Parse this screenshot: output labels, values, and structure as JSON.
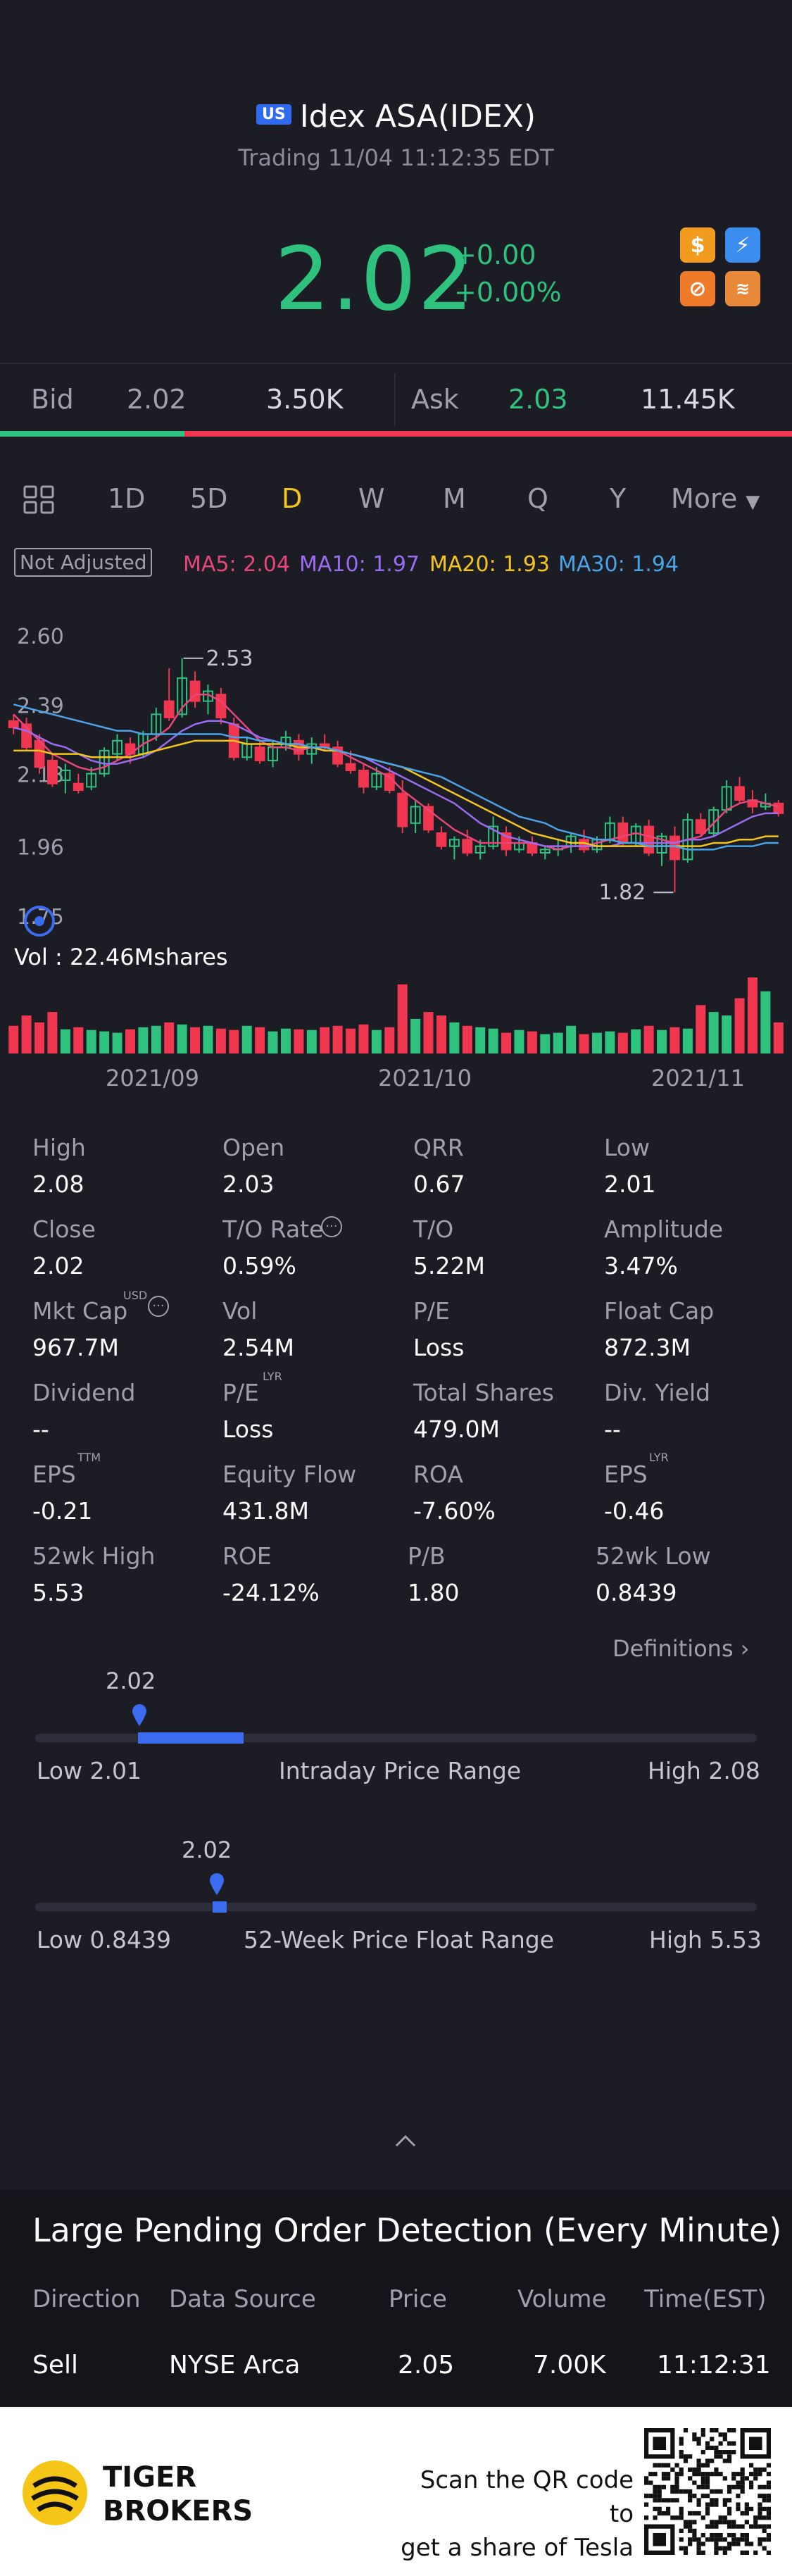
{
  "header": {
    "market_badge": "US",
    "title": "Idex ASA(IDEX)",
    "status": "Trading 11/04 11:12:35 EDT",
    "price": "2.02",
    "change": "+0.00",
    "change_pct": "+0.00%",
    "icons": [
      "dollar-icon",
      "lightning-icon",
      "no-short-icon",
      "stack-a-icon"
    ]
  },
  "quote": {
    "bid_label": "Bid",
    "bid_price": "2.02",
    "bid_size": "3.50K",
    "ask_label": "Ask",
    "ask_price": "2.03",
    "ask_size": "11.45K"
  },
  "tabs": [
    "1D",
    "5D",
    "D",
    "W",
    "M",
    "Q",
    "Y",
    "More"
  ],
  "active_tab": "D",
  "ma": {
    "not_adjusted": "Not Adjusted",
    "ma5": "MA5: 2.04",
    "ma10": "MA10: 1.97",
    "ma20": "MA20: 1.93",
    "ma30": "MA30: 1.94",
    "colors": {
      "ma5": "#e8457a",
      "ma10": "#9b6bf2",
      "ma20": "#f5c518",
      "ma30": "#4aa3e8"
    }
  },
  "chart_data": {
    "type": "candlestick",
    "y_ticks": [
      "2.60",
      "2.39",
      "2.18",
      "1.96",
      "1.75"
    ],
    "ylim": [
      1.75,
      2.6
    ],
    "high_marker": "2.53",
    "low_marker": "1.82",
    "x_ticks": [
      "2021/09",
      "2021/10",
      "2021/11"
    ],
    "volume_label": "Vol  : 22.46Mshares",
    "colors": {
      "up": "#2ec27e",
      "down": "#f0374f"
    },
    "candles": [
      {
        "o": 2.34,
        "h": 2.36,
        "l": 2.3,
        "c": 2.32
      },
      {
        "o": 2.33,
        "h": 2.35,
        "l": 2.25,
        "c": 2.26
      },
      {
        "o": 2.28,
        "h": 2.3,
        "l": 2.18,
        "c": 2.2
      },
      {
        "o": 2.22,
        "h": 2.24,
        "l": 2.14,
        "c": 2.15
      },
      {
        "o": 2.16,
        "h": 2.21,
        "l": 2.12,
        "c": 2.19
      },
      {
        "o": 2.15,
        "h": 2.18,
        "l": 2.12,
        "c": 2.13
      },
      {
        "o": 2.14,
        "h": 2.2,
        "l": 2.13,
        "c": 2.18
      },
      {
        "o": 2.18,
        "h": 2.26,
        "l": 2.17,
        "c": 2.25
      },
      {
        "o": 2.24,
        "h": 2.3,
        "l": 2.22,
        "c": 2.28
      },
      {
        "o": 2.27,
        "h": 2.29,
        "l": 2.21,
        "c": 2.24
      },
      {
        "o": 2.24,
        "h": 2.31,
        "l": 2.23,
        "c": 2.3
      },
      {
        "o": 2.3,
        "h": 2.38,
        "l": 2.28,
        "c": 2.36
      },
      {
        "o": 2.4,
        "h": 2.5,
        "l": 2.34,
        "c": 2.35
      },
      {
        "o": 2.36,
        "h": 2.53,
        "l": 2.35,
        "c": 2.47
      },
      {
        "o": 2.46,
        "h": 2.49,
        "l": 2.38,
        "c": 2.4
      },
      {
        "o": 2.4,
        "h": 2.45,
        "l": 2.36,
        "c": 2.43
      },
      {
        "o": 2.42,
        "h": 2.44,
        "l": 2.33,
        "c": 2.35
      },
      {
        "o": 2.33,
        "h": 2.35,
        "l": 2.22,
        "c": 2.23
      },
      {
        "o": 2.23,
        "h": 2.29,
        "l": 2.22,
        "c": 2.27
      },
      {
        "o": 2.26,
        "h": 2.28,
        "l": 2.21,
        "c": 2.22
      },
      {
        "o": 2.22,
        "h": 2.28,
        "l": 2.2,
        "c": 2.26
      },
      {
        "o": 2.26,
        "h": 2.31,
        "l": 2.25,
        "c": 2.29
      },
      {
        "o": 2.28,
        "h": 2.3,
        "l": 2.22,
        "c": 2.24
      },
      {
        "o": 2.24,
        "h": 2.29,
        "l": 2.21,
        "c": 2.27
      },
      {
        "o": 2.27,
        "h": 2.3,
        "l": 2.25,
        "c": 2.26
      },
      {
        "o": 2.26,
        "h": 2.28,
        "l": 2.2,
        "c": 2.21
      },
      {
        "o": 2.21,
        "h": 2.25,
        "l": 2.18,
        "c": 2.19
      },
      {
        "o": 2.19,
        "h": 2.21,
        "l": 2.12,
        "c": 2.14
      },
      {
        "o": 2.14,
        "h": 2.2,
        "l": 2.13,
        "c": 2.18
      },
      {
        "o": 2.18,
        "h": 2.2,
        "l": 2.12,
        "c": 2.13
      },
      {
        "o": 2.12,
        "h": 2.16,
        "l": 2.0,
        "c": 2.02
      },
      {
        "o": 2.03,
        "h": 2.1,
        "l": 2.0,
        "c": 2.08
      },
      {
        "o": 2.08,
        "h": 2.09,
        "l": 2.0,
        "c": 2.01
      },
      {
        "o": 2.0,
        "h": 2.02,
        "l": 1.95,
        "c": 1.96
      },
      {
        "o": 1.96,
        "h": 1.99,
        "l": 1.92,
        "c": 1.98
      },
      {
        "o": 1.98,
        "h": 2.01,
        "l": 1.93,
        "c": 1.94
      },
      {
        "o": 1.94,
        "h": 1.98,
        "l": 1.92,
        "c": 1.96
      },
      {
        "o": 1.96,
        "h": 2.05,
        "l": 1.95,
        "c": 2.02
      },
      {
        "o": 2.0,
        "h": 2.02,
        "l": 1.93,
        "c": 1.95
      },
      {
        "o": 1.95,
        "h": 1.99,
        "l": 1.94,
        "c": 1.97
      },
      {
        "o": 1.97,
        "h": 1.99,
        "l": 1.93,
        "c": 1.94
      },
      {
        "o": 1.94,
        "h": 1.96,
        "l": 1.92,
        "c": 1.95
      },
      {
        "o": 1.95,
        "h": 1.98,
        "l": 1.93,
        "c": 1.96
      },
      {
        "o": 1.96,
        "h": 2.0,
        "l": 1.94,
        "c": 1.99
      },
      {
        "o": 1.98,
        "h": 2.01,
        "l": 1.94,
        "c": 1.95
      },
      {
        "o": 1.95,
        "h": 1.99,
        "l": 1.94,
        "c": 1.98
      },
      {
        "o": 1.98,
        "h": 2.05,
        "l": 1.97,
        "c": 2.03
      },
      {
        "o": 2.03,
        "h": 2.05,
        "l": 1.96,
        "c": 1.97
      },
      {
        "o": 1.97,
        "h": 2.03,
        "l": 1.96,
        "c": 2.02
      },
      {
        "o": 2.02,
        "h": 2.04,
        "l": 1.93,
        "c": 1.94
      },
      {
        "o": 1.94,
        "h": 2.0,
        "l": 1.9,
        "c": 1.99
      },
      {
        "o": 1.99,
        "h": 2.02,
        "l": 1.82,
        "c": 1.92
      },
      {
        "o": 1.92,
        "h": 2.06,
        "l": 1.91,
        "c": 2.04
      },
      {
        "o": 2.04,
        "h": 2.06,
        "l": 1.99,
        "c": 2.0
      },
      {
        "o": 2.0,
        "h": 2.08,
        "l": 1.99,
        "c": 2.07
      },
      {
        "o": 2.07,
        "h": 2.16,
        "l": 2.06,
        "c": 2.14
      },
      {
        "o": 2.14,
        "h": 2.17,
        "l": 2.09,
        "c": 2.1
      },
      {
        "o": 2.1,
        "h": 2.13,
        "l": 2.06,
        "c": 2.08
      },
      {
        "o": 2.08,
        "h": 2.12,
        "l": 2.07,
        "c": 2.09
      },
      {
        "o": 2.09,
        "h": 2.1,
        "l": 2.05,
        "c": 2.06
      }
    ],
    "ma_lines": {
      "ma5": [
        2.36,
        2.32,
        2.28,
        2.24,
        2.22,
        2.2,
        2.19,
        2.2,
        2.22,
        2.24,
        2.27,
        2.29,
        2.32,
        2.38,
        2.42,
        2.42,
        2.4,
        2.36,
        2.32,
        2.28,
        2.26,
        2.26,
        2.25,
        2.26,
        2.26,
        2.25,
        2.23,
        2.21,
        2.19,
        2.17,
        2.13,
        2.1,
        2.07,
        2.04,
        2.01,
        1.99,
        1.97,
        1.97,
        1.97,
        1.97,
        1.97,
        1.96,
        1.95,
        1.96,
        1.96,
        1.97,
        1.98,
        1.99,
        2.0,
        1.99,
        1.98,
        1.97,
        1.98,
        1.99,
        2.03,
        2.07,
        2.09,
        2.1,
        2.09,
        2.08
      ],
      "ma10": [
        2.32,
        2.31,
        2.29,
        2.27,
        2.26,
        2.24,
        2.22,
        2.21,
        2.21,
        2.22,
        2.23,
        2.25,
        2.28,
        2.31,
        2.33,
        2.34,
        2.34,
        2.33,
        2.31,
        2.29,
        2.28,
        2.27,
        2.26,
        2.26,
        2.25,
        2.25,
        2.24,
        2.23,
        2.21,
        2.19,
        2.17,
        2.15,
        2.13,
        2.11,
        2.09,
        2.06,
        2.03,
        2.01,
        1.99,
        1.98,
        1.97,
        1.96,
        1.96,
        1.96,
        1.96,
        1.96,
        1.96,
        1.97,
        1.97,
        1.97,
        1.97,
        1.97,
        1.98,
        1.98,
        1.99,
        2.01,
        2.03,
        2.05,
        2.06,
        2.06
      ],
      "ma20": [
        2.25,
        2.25,
        2.25,
        2.24,
        2.24,
        2.24,
        2.23,
        2.23,
        2.23,
        2.23,
        2.24,
        2.25,
        2.26,
        2.27,
        2.28,
        2.28,
        2.28,
        2.28,
        2.27,
        2.27,
        2.27,
        2.27,
        2.26,
        2.26,
        2.25,
        2.25,
        2.24,
        2.23,
        2.22,
        2.21,
        2.2,
        2.18,
        2.16,
        2.14,
        2.12,
        2.1,
        2.08,
        2.06,
        2.04,
        2.02,
        2.0,
        1.99,
        1.98,
        1.97,
        1.97,
        1.96,
        1.96,
        1.96,
        1.96,
        1.96,
        1.96,
        1.96,
        1.96,
        1.96,
        1.97,
        1.97,
        1.98,
        1.98,
        1.99,
        1.99
      ],
      "ma30": [
        2.39,
        2.38,
        2.37,
        2.36,
        2.35,
        2.34,
        2.33,
        2.32,
        2.31,
        2.31,
        2.3,
        2.3,
        2.3,
        2.3,
        2.3,
        2.3,
        2.3,
        2.29,
        2.29,
        2.28,
        2.28,
        2.27,
        2.27,
        2.26,
        2.26,
        2.25,
        2.24,
        2.23,
        2.22,
        2.21,
        2.2,
        2.19,
        2.18,
        2.17,
        2.15,
        2.13,
        2.11,
        2.09,
        2.07,
        2.05,
        2.04,
        2.03,
        2.01,
        2.0,
        1.99,
        1.98,
        1.98,
        1.97,
        1.97,
        1.96,
        1.96,
        1.96,
        1.95,
        1.95,
        1.95,
        1.96,
        1.96,
        1.96,
        1.97,
        1.97
      ]
    },
    "volumes": [
      40,
      55,
      45,
      60,
      35,
      38,
      34,
      32,
      30,
      35,
      38,
      40,
      45,
      42,
      38,
      40,
      36,
      34,
      40,
      38,
      32,
      36,
      35,
      34,
      38,
      40,
      36,
      42,
      34,
      38,
      100,
      50,
      60,
      55,
      45,
      40,
      38,
      36,
      30,
      34,
      32,
      28,
      30,
      40,
      28,
      30,
      32,
      30,
      35,
      40,
      34,
      38,
      36,
      70,
      60,
      55,
      80,
      110,
      90,
      45
    ]
  },
  "stats": [
    {
      "label": "High",
      "value": "2.08"
    },
    {
      "label": "Open",
      "value": "2.03"
    },
    {
      "label": "QRR",
      "value": "0.67"
    },
    {
      "label": "Low",
      "value": "2.01"
    },
    {
      "label": "Close",
      "value": "2.02"
    },
    {
      "label": "T/O Rate",
      "value": "0.59%"
    },
    {
      "label": "T/O",
      "value": "5.22M"
    },
    {
      "label": "Amplitude",
      "value": "3.47%"
    },
    {
      "label": "Mkt Cap",
      "value": "967.7M"
    },
    {
      "label": "Vol",
      "value": "2.54M"
    },
    {
      "label": "P/E",
      "value": "Loss"
    },
    {
      "label": "Float Cap",
      "value": "872.3M"
    },
    {
      "label": "Dividend",
      "value": "--"
    },
    {
      "label": "P/E",
      "value": "Loss"
    },
    {
      "label": "Total Shares",
      "value": "479.0M"
    },
    {
      "label": "Div. Yield",
      "value": "--"
    },
    {
      "label": "EPS",
      "value": "-0.21"
    },
    {
      "label": "Equity Flow",
      "value": "431.8M"
    },
    {
      "label": "ROA",
      "value": "-7.60%"
    },
    {
      "label": "EPS",
      "value": "-0.46"
    },
    {
      "label": "52wk High",
      "value": "5.53"
    },
    {
      "label": "ROE",
      "value": "-24.12%"
    },
    {
      "label": "P/B",
      "value": "1.80"
    },
    {
      "label": "52wk Low",
      "value": "0.8439"
    }
  ],
  "stat_sups": {
    "mktcap": "USD",
    "pe": "LYR",
    "eps_ttm": "TTM",
    "eps_lyr": "LYR"
  },
  "definitions": "Definitions",
  "intraday": {
    "marker": "2.02",
    "low": "Low 2.01",
    "title": "Intraday Price Range",
    "high": "High 2.08",
    "position": 0.14
  },
  "week52": {
    "marker": "2.02",
    "low": "Low 0.8439",
    "title": "52-Week Price Float Range",
    "high": "High 5.53",
    "position": 0.25
  },
  "pending": {
    "title": "Large Pending Order Detection (Every Minute)",
    "headers": [
      "Direction",
      "Data Source",
      "Price",
      "Volume",
      "Time(EST)"
    ],
    "row": [
      "Sell",
      "NYSE Arca",
      "2.05",
      "7.00K",
      "11:12:31"
    ]
  },
  "footer": {
    "brand_line1": "TIGER",
    "brand_line2": "BROKERS",
    "cta_line1": "Scan the QR code to",
    "cta_line2": "get a share of Tesla"
  }
}
